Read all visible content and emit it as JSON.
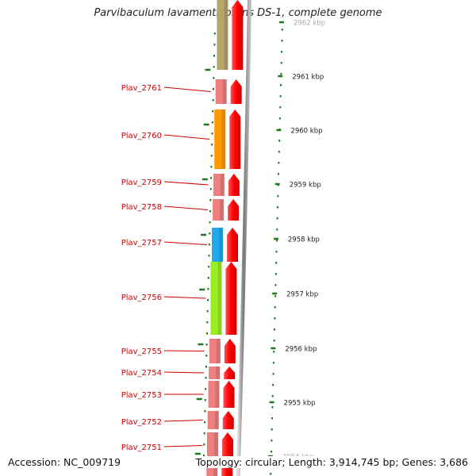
{
  "title": "Parvibaculum lavamentivorans DS-1, complete genome",
  "footer": {
    "accession": "Accession: NC_009719",
    "summary": "Topology: circular; Length: 3,914,745 bp; Genes: 3,686"
  },
  "scale_ticks": [
    {
      "label": "2962 kbp",
      "faded": true
    },
    {
      "label": "2961 kbp"
    },
    {
      "label": "2960 kbp"
    },
    {
      "label": "2959 kbp"
    },
    {
      "label": "2958 kbp"
    },
    {
      "label": "2957 kbp"
    },
    {
      "label": "2956 kbp"
    },
    {
      "label": "2955 kbp"
    },
    {
      "label": "2954 kbp",
      "faded": true
    }
  ],
  "genes": [
    {
      "label": "",
      "category_color": "#b5a66b"
    },
    {
      "label": "Plav_2761",
      "category_color": "#ee8080"
    },
    {
      "label": "Plav_2760",
      "category_color": "#ff9900"
    },
    {
      "label": "Plav_2759",
      "category_color": "#ee8080"
    },
    {
      "label": "Plav_2758",
      "category_color": "#ee8080"
    },
    {
      "label": "Plav_2757",
      "category_color": "#22aaee"
    },
    {
      "label": "Plav_2756",
      "category_color": "#99ee22"
    },
    {
      "label": "Plav_2755",
      "category_color": "#ee8080"
    },
    {
      "label": "Plav_2754",
      "category_color": "#ee8080"
    },
    {
      "label": "Plav_2753",
      "category_color": "#ee8080"
    },
    {
      "label": "Plav_2752",
      "category_color": "#ee8080"
    },
    {
      "label": "Plav_2751",
      "category_color": "#ee8080"
    },
    {
      "label": "",
      "category_color": "#ee8080"
    }
  ],
  "colors": {
    "label_text": "#cc0000",
    "leader_line": "#cc0000",
    "cds_arrow": "#ff0000",
    "tick_mark": "#227722",
    "backbone": "#888888"
  }
}
